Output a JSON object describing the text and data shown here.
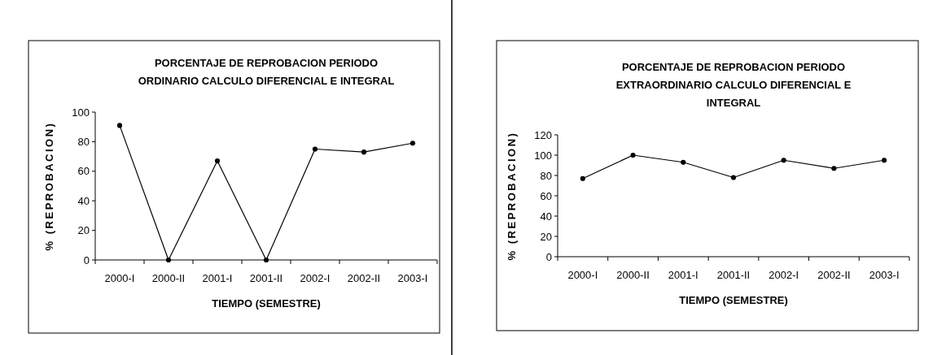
{
  "chart_data": [
    {
      "type": "line",
      "title": "PORCENTAJE DE REPROBACION PERIODO ORDINARIO CALCULO DIFERENCIAL E INTEGRAL",
      "xlabel": "TIEMPO (SEMESTRE)",
      "ylabel": "% (REPROBACION)",
      "categories": [
        "2000-I",
        "2000-II",
        "2001-I",
        "2001-II",
        "2002-I",
        "2002-II",
        "2003-I"
      ],
      "series": [
        {
          "color": "#000000",
          "values": [
            91,
            0,
            67,
            0,
            75,
            73,
            79
          ]
        }
      ],
      "ylim": [
        0,
        100
      ],
      "yticks": [
        0,
        20,
        40,
        60,
        80,
        100
      ],
      "marker": "circle",
      "grid": false
    },
    {
      "type": "line",
      "title": "PORCENTAJE DE REPROBACION PERIODO EXTRAORDINARIO CALCULO DIFERENCIAL E INTEGRAL",
      "xlabel": "TIEMPO (SEMESTRE)",
      "ylabel": "% (REPROBACION)",
      "categories": [
        "2000-I",
        "2000-II",
        "2001-I",
        "2001-II",
        "2002-I",
        "2002-II",
        "2003-I"
      ],
      "series": [
        {
          "color": "#000000",
          "values": [
            77,
            100,
            93,
            78,
            95,
            87,
            95
          ]
        }
      ],
      "ylim": [
        0,
        120
      ],
      "yticks": [
        0,
        20,
        40,
        60,
        80,
        100,
        120
      ],
      "marker": "circle",
      "grid": false
    }
  ]
}
